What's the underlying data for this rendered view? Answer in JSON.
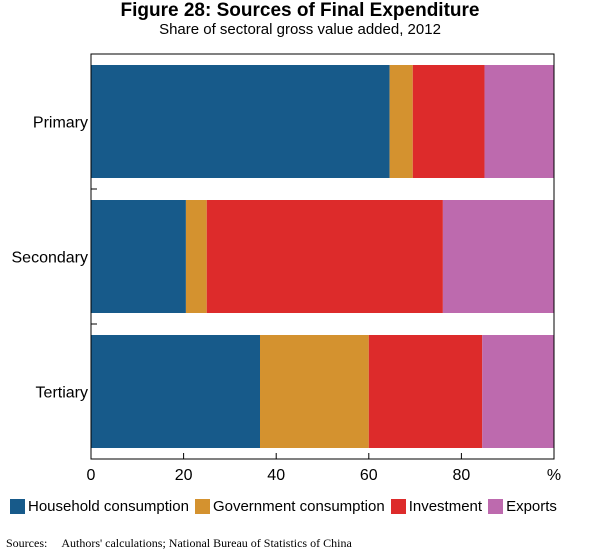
{
  "header": {
    "title": "Figure 28: Sources of Final Expenditure",
    "subtitle": "Share of sectoral gross value added, 2012"
  },
  "source": {
    "label": "Sources:",
    "text": "Authors' calculations; National Bureau of Statistics of China"
  },
  "chart_data": {
    "type": "bar",
    "orientation": "horizontal",
    "stacked": true,
    "title": "Figure 28: Sources of Final Expenditure",
    "subtitle": "Share of sectoral gross value added, 2012",
    "categories": [
      "Primary",
      "Secondary",
      "Tertiary"
    ],
    "series": [
      {
        "name": "Household consumption",
        "color": "#175a8a",
        "values": [
          64.5,
          20.5,
          36.5
        ]
      },
      {
        "name": "Government consumption",
        "color": "#d4922f",
        "values": [
          5.0,
          4.5,
          23.5
        ]
      },
      {
        "name": "Investment",
        "color": "#dd2b2b",
        "values": [
          15.5,
          51.0,
          24.5
        ]
      },
      {
        "name": "Exports",
        "color": "#bd6aae",
        "values": [
          15.0,
          24.0,
          15.5
        ]
      }
    ],
    "x_ticks": [
      "0",
      "20",
      "40",
      "60",
      "80",
      "%"
    ],
    "xlim": [
      0,
      100
    ],
    "xlabel": "",
    "ylabel": "",
    "grid": false,
    "legend_position": "bottom"
  }
}
